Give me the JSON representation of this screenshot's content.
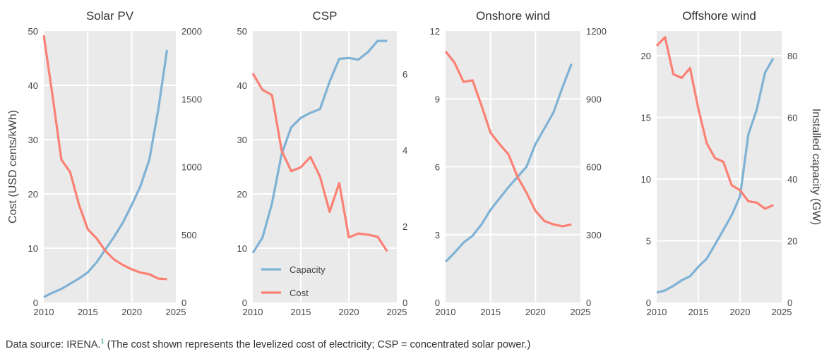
{
  "colors": {
    "capacity": "#7fb2d5",
    "cost": "#fa8174",
    "plot_background": "#eaeaea",
    "grid": "#ffffff",
    "footnote_marker": "#1ea672"
  },
  "footer": {
    "prefix": "Data source: IRENA.",
    "footnote_marker": "1",
    "suffix": " (The cost shown represents the levelized cost of electricity; CSP = concentrated solar power.)"
  },
  "chart_data": [
    {
      "type": "line",
      "title": "Solar PV",
      "xlabel": "",
      "ylabel": "Cost (USD cents/kWh)",
      "y2label": "",
      "x": [
        2010,
        2011,
        2012,
        2013,
        2014,
        2015,
        2016,
        2017,
        2018,
        2019,
        2020,
        2021,
        2022,
        2023,
        2024
      ],
      "xlim": [
        2010,
        2025
      ],
      "xticks": [
        2010,
        2015,
        2020,
        2025
      ],
      "ylim": [
        0,
        50
      ],
      "yticks": [
        0,
        10,
        20,
        30,
        40,
        50
      ],
      "y2lim": [
        0,
        2000
      ],
      "y2ticks": [
        0,
        500,
        1000,
        1500,
        2000
      ],
      "grid": true,
      "legend": null,
      "series": [
        {
          "name": "Capacity",
          "axis": "right",
          "color": "#7fb2d5",
          "values": [
            40,
            72,
            100,
            138,
            177,
            222,
            296,
            390,
            485,
            590,
            720,
            860,
            1055,
            1420,
            1860
          ]
        },
        {
          "name": "Cost",
          "axis": "left",
          "color": "#fa8174",
          "values": [
            49.2,
            38.0,
            26.3,
            24.0,
            18.0,
            13.5,
            11.8,
            9.5,
            7.9,
            6.9,
            6.1,
            5.5,
            5.2,
            4.4,
            4.3
          ]
        }
      ]
    },
    {
      "type": "line",
      "title": "CSP",
      "xlabel": "",
      "ylabel": "",
      "y2label": "",
      "x": [
        2010,
        2011,
        2012,
        2013,
        2014,
        2015,
        2016,
        2017,
        2018,
        2019,
        2020,
        2021,
        2022,
        2023,
        2024
      ],
      "xlim": [
        2010,
        2025
      ],
      "xticks": [
        2010,
        2015,
        2020,
        2025
      ],
      "ylim": [
        0,
        50
      ],
      "yticks": [
        0,
        10,
        20,
        30,
        40,
        50
      ],
      "y2lim": [
        0,
        7.13
      ],
      "y2ticks": [
        0,
        2,
        4,
        6
      ],
      "grid": true,
      "legend": {
        "placement": "bottom-left",
        "entries": [
          "Capacity",
          "Cost"
        ]
      },
      "series": [
        {
          "name": "Capacity",
          "axis": "right",
          "color": "#7fb2d5",
          "values": [
            1.3,
            1.7,
            2.6,
            3.9,
            4.6,
            4.85,
            4.98,
            5.08,
            5.8,
            6.4,
            6.42,
            6.38,
            6.58,
            6.87,
            6.87
          ]
        },
        {
          "name": "Cost",
          "axis": "left",
          "color": "#fa8174",
          "values": [
            42.2,
            39.2,
            38.2,
            28.0,
            24.2,
            24.9,
            26.8,
            23.2,
            16.7,
            22.0,
            12.0,
            12.7,
            12.5,
            12.1,
            9.4
          ]
        }
      ]
    },
    {
      "type": "line",
      "title": "Onshore wind",
      "xlabel": "",
      "ylabel": "",
      "y2label": "",
      "x": [
        2010,
        2011,
        2012,
        2013,
        2014,
        2015,
        2016,
        2017,
        2018,
        2019,
        2020,
        2021,
        2022,
        2023,
        2024
      ],
      "xlim": [
        2010,
        2025
      ],
      "xticks": [
        2010,
        2015,
        2020,
        2025
      ],
      "ylim": [
        0,
        12
      ],
      "yticks": [
        0,
        3,
        6,
        9,
        12
      ],
      "y2lim": [
        0,
        1200
      ],
      "y2ticks": [
        0,
        300,
        600,
        900,
        1200
      ],
      "grid": true,
      "legend": null,
      "series": [
        {
          "name": "Capacity",
          "axis": "right",
          "color": "#7fb2d5",
          "values": [
            180,
            220,
            265,
            295,
            345,
            410,
            460,
            510,
            555,
            600,
            700,
            770,
            840,
            950,
            1055
          ]
        },
        {
          "name": "Cost",
          "axis": "left",
          "color": "#fa8174",
          "values": [
            11.1,
            10.6,
            9.75,
            9.82,
            8.7,
            7.5,
            7.0,
            6.55,
            5.55,
            4.85,
            4.05,
            3.6,
            3.45,
            3.37,
            3.45
          ]
        }
      ]
    },
    {
      "type": "line",
      "title": "Offshore wind",
      "xlabel": "",
      "ylabel": "",
      "y2label": "Installed capacity (GW)",
      "x": [
        2010,
        2011,
        2012,
        2013,
        2014,
        2015,
        2016,
        2017,
        2018,
        2019,
        2020,
        2021,
        2022,
        2023,
        2024
      ],
      "xlim": [
        2010,
        2025
      ],
      "xticks": [
        2010,
        2015,
        2020,
        2025
      ],
      "ylim": [
        0,
        22
      ],
      "yticks": [
        0,
        5,
        10,
        15,
        20
      ],
      "y2lim": [
        0,
        88
      ],
      "y2ticks": [
        0,
        20,
        40,
        60,
        80
      ],
      "grid": true,
      "legend": null,
      "series": [
        {
          "name": "Capacity",
          "axis": "right",
          "color": "#7fb2d5",
          "values": [
            3.2,
            3.9,
            5.4,
            7.2,
            8.5,
            11.6,
            14.2,
            18.8,
            23.5,
            28.3,
            34.4,
            54.5,
            62.5,
            74.5,
            79.2
          ]
        },
        {
          "name": "Cost",
          "axis": "left",
          "color": "#fa8174",
          "values": [
            20.8,
            21.5,
            18.5,
            18.2,
            19.0,
            15.7,
            12.9,
            11.7,
            11.4,
            9.5,
            9.1,
            8.2,
            8.1,
            7.6,
            7.9
          ]
        }
      ]
    }
  ]
}
